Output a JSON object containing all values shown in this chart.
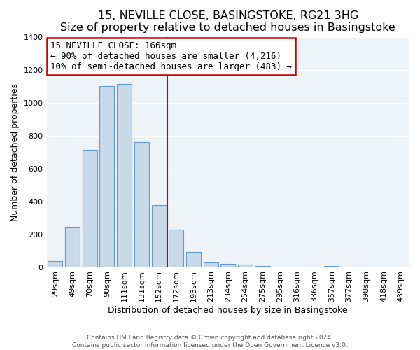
{
  "title": "15, NEVILLE CLOSE, BASINGSTOKE, RG21 3HG",
  "subtitle": "Size of property relative to detached houses in Basingstoke",
  "xlabel": "Distribution of detached houses by size in Basingstoke",
  "ylabel": "Number of detached properties",
  "bar_labels": [
    "29sqm",
    "49sqm",
    "70sqm",
    "90sqm",
    "111sqm",
    "131sqm",
    "152sqm",
    "172sqm",
    "193sqm",
    "213sqm",
    "234sqm",
    "254sqm",
    "275sqm",
    "295sqm",
    "316sqm",
    "336sqm",
    "357sqm",
    "377sqm",
    "398sqm",
    "418sqm",
    "439sqm"
  ],
  "bar_heights": [
    35,
    245,
    715,
    1100,
    1115,
    760,
    375,
    230,
    90,
    30,
    20,
    15,
    5,
    0,
    0,
    0,
    5,
    0,
    0,
    0,
    0
  ],
  "bar_color": "#c8daea",
  "bar_edge_color": "#6699cc",
  "vline_color": "#cc0000",
  "annotation_title": "15 NEVILLE CLOSE: 166sqm",
  "annotation_line1": "← 90% of detached houses are smaller (4,216)",
  "annotation_line2": "10% of semi-detached houses are larger (483) →",
  "annotation_box_facecolor": "#ffffff",
  "annotation_box_edgecolor": "#cc0000",
  "ylim": [
    0,
    1400
  ],
  "yticks": [
    0,
    200,
    400,
    600,
    800,
    1000,
    1200,
    1400
  ],
  "footer_line1": "Contains HM Land Registry data © Crown copyright and database right 2024.",
  "footer_line2": "Contains public sector information licensed under the Open Government Licence v3.0.",
  "fig_facecolor": "#ffffff",
  "plot_facecolor": "#eef3f8",
  "grid_color": "#ffffff",
  "title_fontsize": 11.5,
  "subtitle_fontsize": 10,
  "axis_label_fontsize": 9,
  "tick_fontsize": 8,
  "annotation_fontsize": 9
}
